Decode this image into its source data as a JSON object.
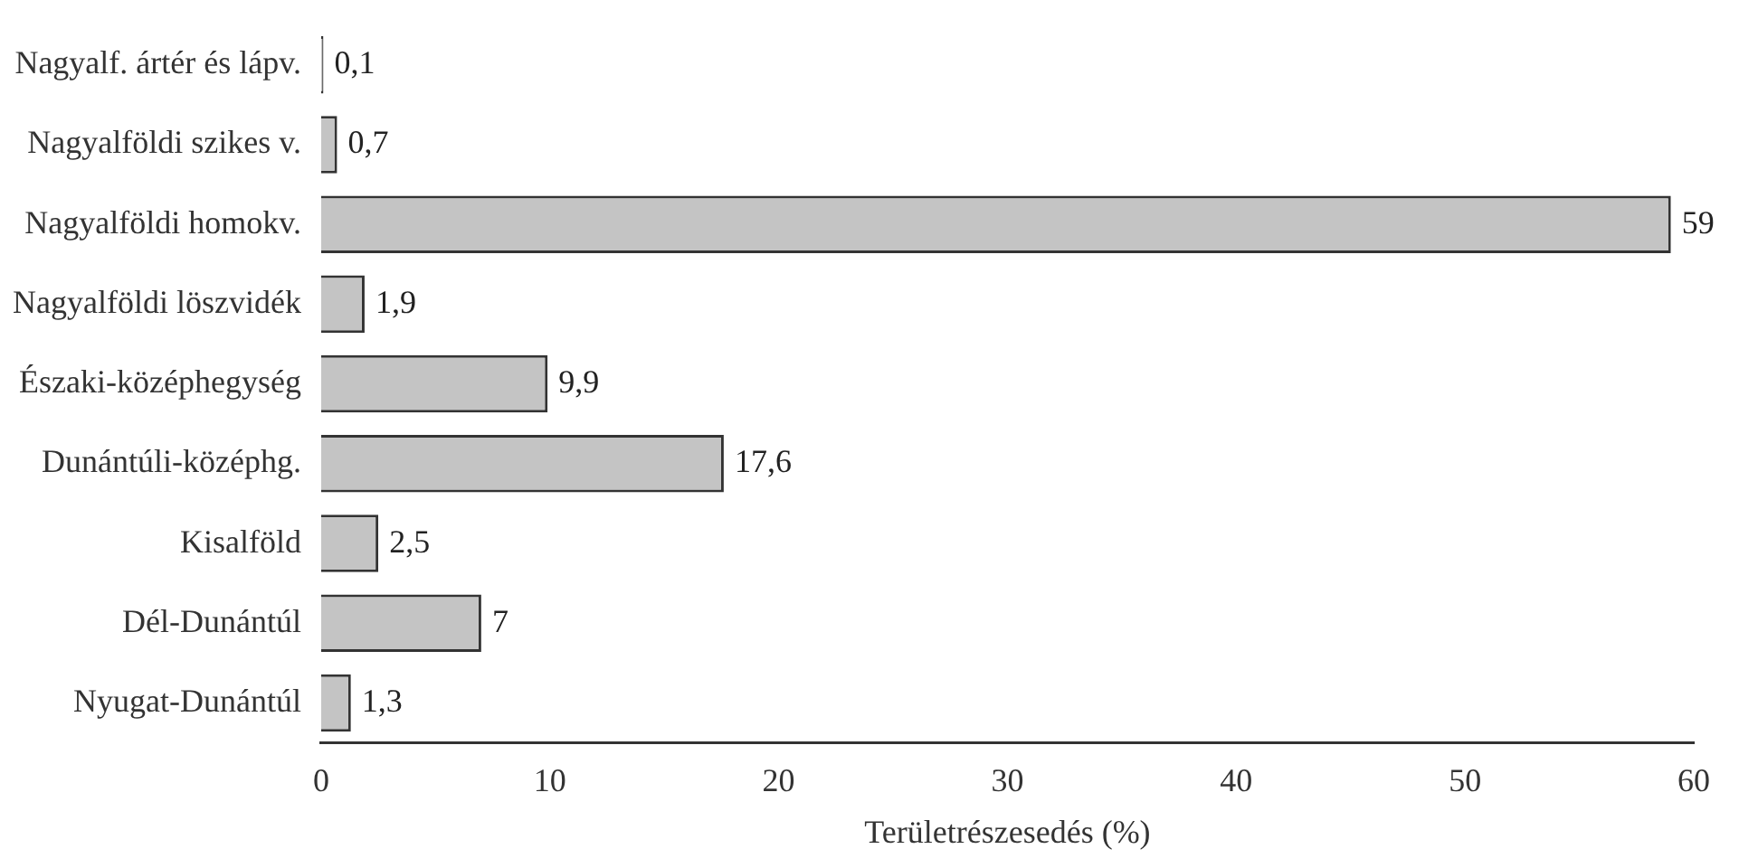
{
  "chart_data": {
    "type": "bar",
    "orientation": "horizontal",
    "xlabel": "Területrészesedés (%)",
    "categories": [
      "Nagyalf. ártér és lápv.",
      "Nagyalföldi szikes v.",
      "Nagyalföldi homokv.",
      "Nagyalföldi löszvidék",
      "Északi-középhegység",
      "Dunántúli-középhg.",
      "Kisalföld",
      "Dél-Dunántúl",
      "Nyugat-Dunántúl"
    ],
    "values": [
      0.1,
      0.7,
      59,
      1.9,
      9.9,
      17.6,
      2.5,
      7,
      1.3
    ],
    "value_labels": [
      "0,1",
      "0,7",
      "59",
      "1,9",
      "9,9",
      "17,6",
      "2,5",
      "7",
      "1,3"
    ],
    "color": "#c4c4c4",
    "xlim": [
      0,
      60
    ],
    "xticks": [
      0,
      10,
      20,
      30,
      40,
      50,
      60
    ],
    "grid": false,
    "legend": false
  }
}
